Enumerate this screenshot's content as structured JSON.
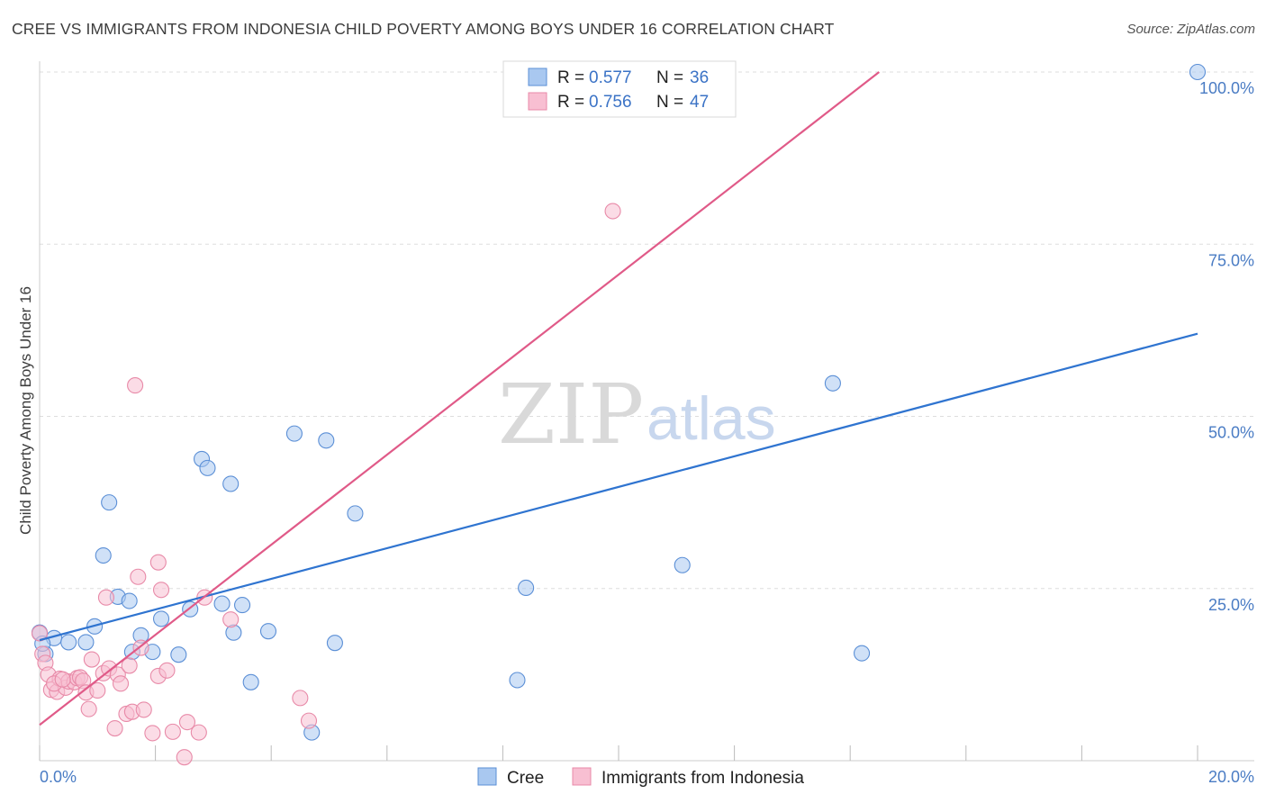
{
  "title": "CREE VS IMMIGRANTS FROM INDONESIA CHILD POVERTY AMONG BOYS UNDER 16 CORRELATION CHART",
  "source": "Source: ZipAtlas.com",
  "watermark": {
    "zip": "ZIP",
    "atlas": "atlas"
  },
  "colors": {
    "cree_fill": "#a9c8f0",
    "cree_stroke": "#5b8fd6",
    "cree_line": "#2f74d0",
    "indo_fill": "#f8bfd2",
    "indo_stroke": "#e88aa8",
    "indo_line": "#e05a88",
    "grid": "#dddddd",
    "axis_label": "#4a7cc4"
  },
  "legend": {
    "r_label": "R =",
    "n_label": "N =",
    "cree_r": "0.577",
    "cree_n": "36",
    "indo_r": "0.756",
    "indo_n": "47"
  },
  "chart_data": {
    "type": "scatter",
    "title": "CREE VS IMMIGRANTS FROM INDONESIA CHILD POVERTY AMONG BOYS UNDER 16 CORRELATION CHART",
    "xlabel": "",
    "ylabel": "Child Poverty Among Boys Under 16",
    "xlim": [
      0,
      20
    ],
    "ylim": [
      0,
      100
    ],
    "x_tick_labels": [
      "0.0%",
      "20.0%"
    ],
    "y_ticks": [
      25,
      50,
      75,
      100
    ],
    "y_tick_labels": [
      "25.0%",
      "50.0%",
      "75.0%",
      "100.0%"
    ],
    "grid": true,
    "legend_position": "top-center",
    "bottom_legend": [
      "Cree",
      "Immigrants from Indonesia"
    ],
    "series": [
      {
        "name": "Cree",
        "r": 0.577,
        "n": 36,
        "trend": {
          "x": [
            0,
            20
          ],
          "y": [
            17.5,
            62.0
          ]
        },
        "points": [
          [
            0.0,
            18.6
          ],
          [
            0.1,
            15.5
          ],
          [
            0.25,
            17.8
          ],
          [
            0.5,
            17.2
          ],
          [
            0.8,
            17.2
          ],
          [
            0.95,
            19.5
          ],
          [
            1.1,
            29.8
          ],
          [
            1.2,
            37.5
          ],
          [
            1.35,
            23.8
          ],
          [
            1.55,
            23.2
          ],
          [
            1.6,
            15.8
          ],
          [
            1.75,
            18.2
          ],
          [
            1.95,
            15.8
          ],
          [
            2.1,
            20.6
          ],
          [
            2.4,
            15.4
          ],
          [
            2.6,
            22.0
          ],
          [
            2.8,
            43.8
          ],
          [
            2.9,
            42.5
          ],
          [
            3.15,
            22.8
          ],
          [
            3.3,
            40.2
          ],
          [
            3.35,
            18.6
          ],
          [
            3.5,
            22.6
          ],
          [
            3.65,
            11.4
          ],
          [
            3.95,
            18.8
          ],
          [
            4.4,
            47.5
          ],
          [
            4.7,
            4.1
          ],
          [
            4.95,
            46.5
          ],
          [
            5.1,
            17.1
          ],
          [
            5.45,
            35.9
          ],
          [
            8.25,
            11.7
          ],
          [
            8.4,
            25.1
          ],
          [
            11.1,
            28.4
          ],
          [
            13.7,
            54.8
          ],
          [
            14.2,
            15.6
          ],
          [
            20.0,
            100.0
          ],
          [
            0.05,
            17.0
          ]
        ]
      },
      {
        "name": "Immigrants from Indonesia",
        "r": 0.756,
        "n": 47,
        "trend": {
          "x": [
            0,
            14.5
          ],
          "y": [
            5.2,
            100.0
          ]
        },
        "points": [
          [
            0.0,
            18.5
          ],
          [
            0.05,
            15.5
          ],
          [
            0.1,
            14.2
          ],
          [
            0.15,
            12.5
          ],
          [
            0.2,
            10.3
          ],
          [
            0.3,
            10.0
          ],
          [
            0.35,
            11.9
          ],
          [
            0.45,
            10.6
          ],
          [
            0.5,
            11.5
          ],
          [
            0.6,
            11.4
          ],
          [
            0.65,
            12.0
          ],
          [
            0.7,
            12.1
          ],
          [
            0.75,
            11.6
          ],
          [
            0.8,
            9.9
          ],
          [
            0.85,
            7.5
          ],
          [
            0.9,
            14.7
          ],
          [
            1.0,
            10.2
          ],
          [
            1.1,
            12.7
          ],
          [
            1.15,
            23.7
          ],
          [
            1.2,
            13.4
          ],
          [
            1.3,
            4.7
          ],
          [
            1.35,
            12.5
          ],
          [
            1.4,
            11.2
          ],
          [
            1.5,
            6.8
          ],
          [
            1.55,
            13.8
          ],
          [
            1.6,
            7.1
          ],
          [
            1.65,
            54.5
          ],
          [
            1.7,
            26.7
          ],
          [
            1.75,
            16.4
          ],
          [
            1.8,
            7.4
          ],
          [
            1.95,
            4.0
          ],
          [
            2.05,
            12.3
          ],
          [
            2.05,
            28.8
          ],
          [
            2.1,
            24.8
          ],
          [
            2.2,
            13.1
          ],
          [
            2.3,
            4.2
          ],
          [
            2.5,
            0.5
          ],
          [
            2.55,
            5.6
          ],
          [
            2.75,
            4.1
          ],
          [
            2.85,
            23.7
          ],
          [
            3.3,
            20.5
          ],
          [
            4.5,
            9.1
          ],
          [
            4.65,
            5.8
          ],
          [
            9.9,
            79.8
          ],
          [
            10.9,
            100.0
          ],
          [
            0.25,
            11.2
          ],
          [
            0.4,
            11.8
          ]
        ]
      }
    ]
  }
}
